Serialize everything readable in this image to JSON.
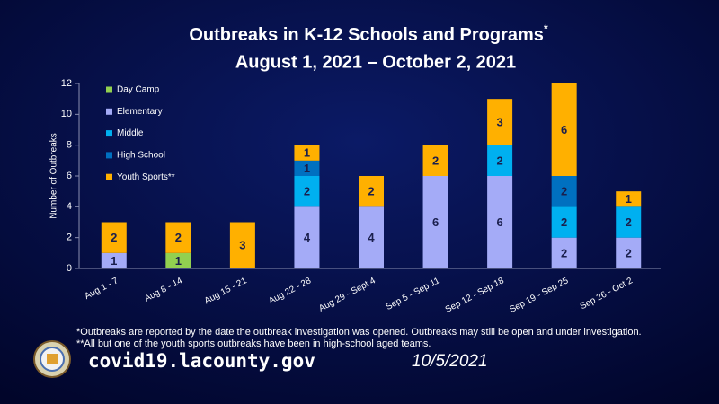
{
  "chart_data": {
    "type": "stacked_bar",
    "title": "Outbreaks in K-12 Schools and Programs",
    "title_mark": "*",
    "subtitle": "August 1, 2021 – October 2, 2021",
    "y_label": "Number of Outbreaks",
    "categories": [
      "Aug 1 - 7",
      "Aug 8 - 14",
      "Aug 15 - 21",
      "Aug 22 - 28",
      "Aug 29 - Sept 4",
      "Sep 5 - Sep 11",
      "Sep 12 - Sep 18",
      "Sep 19 - Sep 25",
      "Sep 26 - Oct 2"
    ],
    "series": [
      {
        "name": "Day Camp",
        "color": "#92d050",
        "values": [
          null,
          1,
          null,
          null,
          null,
          null,
          null,
          null,
          null
        ]
      },
      {
        "name": "Elementary",
        "color": "#a4abf7",
        "values": [
          1,
          null,
          null,
          4,
          4,
          6,
          6,
          2,
          2
        ]
      },
      {
        "name": "Middle",
        "color": "#00b0f0",
        "values": [
          null,
          null,
          null,
          2,
          null,
          null,
          2,
          2,
          2
        ]
      },
      {
        "name": "High School",
        "color": "#0070c0",
        "values": [
          null,
          null,
          null,
          1,
          null,
          null,
          null,
          2,
          null
        ]
      },
      {
        "name": "Youth Sports**",
        "color": "#ffb000",
        "values": [
          2,
          2,
          3,
          1,
          2,
          2,
          3,
          6,
          1
        ]
      }
    ],
    "ylim": [
      0,
      12
    ],
    "yticks": [
      0,
      2,
      4,
      6,
      8,
      10,
      12
    ],
    "legend": "top-left",
    "footnotes": [
      "*Outbreaks are reported by the date the outbreak investigation was opened. Outbreaks may still be open and under investigation.",
      "**All but one of the youth sports outbreaks have been in high-school aged teams."
    ],
    "website": "covid19.lacounty.gov",
    "date": "10/5/2021"
  }
}
